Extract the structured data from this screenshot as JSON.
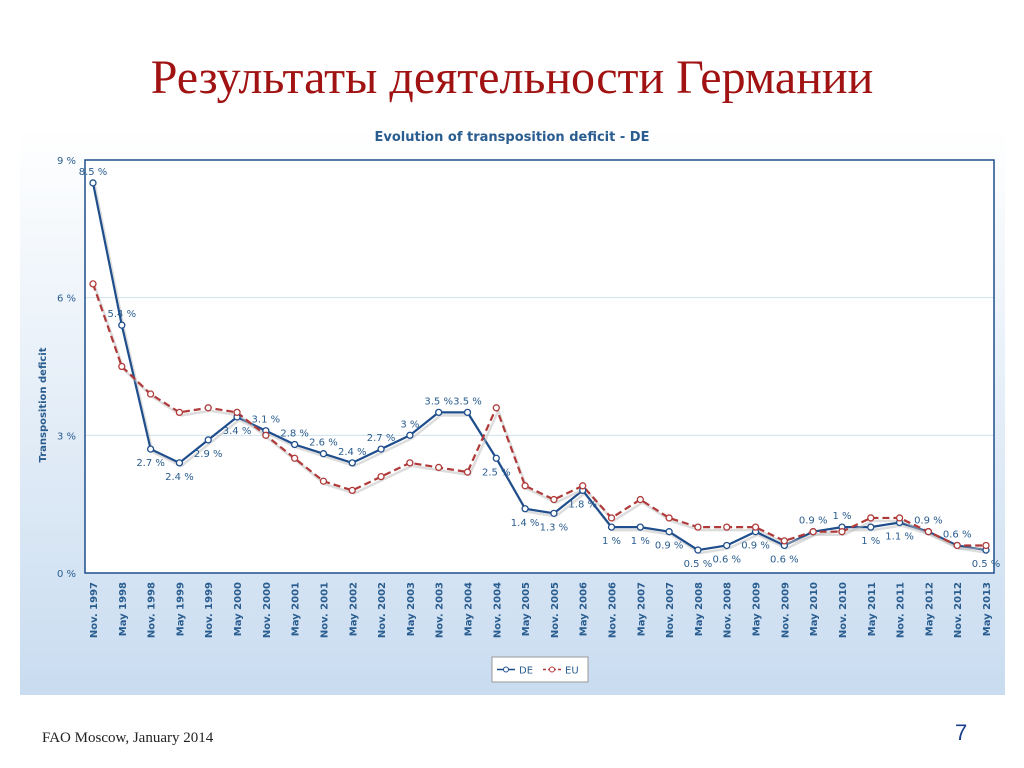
{
  "slide": {
    "title": "Результаты деятельности Германии",
    "footer": "FAO Moscow, January 2014",
    "page_number": "7"
  },
  "chart_data": {
    "type": "line",
    "title": "Evolution of transposition deficit -  DE",
    "y_label": "Transposition deficit",
    "categories": [
      "Nov. 1997",
      "May 1998",
      "Nov. 1998",
      "May 1999",
      "Nov. 1999",
      "May 2000",
      "Nov. 2000",
      "May 2001",
      "Nov. 2001",
      "May 2002",
      "Nov. 2002",
      "May 2003",
      "Nov. 2003",
      "May 2004",
      "Nov. 2004",
      "May 2005",
      "Nov. 2005",
      "May 2006",
      "Nov. 2006",
      "May 2007",
      "Nov. 2007",
      "May 2008",
      "Nov. 2008",
      "May 2009",
      "Nov. 2009",
      "May 2010",
      "Nov. 2010",
      "May 2011",
      "Nov. 2011",
      "May 2012",
      "Nov. 2012",
      "May 2013"
    ],
    "series": [
      {
        "name": "DE",
        "color": "#1f4e8c",
        "dashed": false,
        "values": [
          8.5,
          5.4,
          2.7,
          2.4,
          2.9,
          3.4,
          3.1,
          2.8,
          2.6,
          2.4,
          2.7,
          3,
          3.5,
          3.5,
          2.5,
          1.4,
          1.3,
          1.8,
          1,
          1,
          0.9,
          0.5,
          0.6,
          0.9,
          0.6,
          0.9,
          1,
          1,
          1.1,
          0.9,
          0.6,
          0.5
        ],
        "value_labels": [
          "8.5 %",
          "5.4 %",
          "2.7 %",
          "2.4 %",
          "2.9 %",
          "3.4 %",
          "3.1 %",
          "2.8 %",
          "2.6 %",
          "2.4 %",
          "2.7 %",
          "3 %",
          "3.5 %",
          "3.5 %",
          "2.5 %",
          "1.4 %",
          "1.3 %",
          "1.8 %",
          "1 %",
          "1 %",
          "0.9 %",
          "0.5 %",
          "0.6 %",
          "0.9 %",
          "0.6 %",
          "0.9 %",
          "1 %",
          "1 %",
          "1.1 %",
          "0.9 %",
          "0.6 %",
          "0.5 %"
        ]
      },
      {
        "name": "EU",
        "color": "#b03a3a",
        "dashed": true,
        "values": [
          6.3,
          4.5,
          3.9,
          3.5,
          3.6,
          3.5,
          3.0,
          2.5,
          2.0,
          1.8,
          2.1,
          2.4,
          2.3,
          2.2,
          3.6,
          1.9,
          1.6,
          1.9,
          1.2,
          1.6,
          1.2,
          1.0,
          1.0,
          1.0,
          0.7,
          0.9,
          0.9,
          1.2,
          1.2,
          0.9,
          0.6,
          0.6
        ]
      }
    ],
    "ylim": [
      0,
      9
    ],
    "yticks": [
      {
        "value": 0,
        "label": "0 %"
      },
      {
        "value": 3,
        "label": "3 %"
      },
      {
        "value": 6,
        "label": "6 %"
      },
      {
        "value": 9,
        "label": "9 %"
      }
    ],
    "grid": true
  }
}
